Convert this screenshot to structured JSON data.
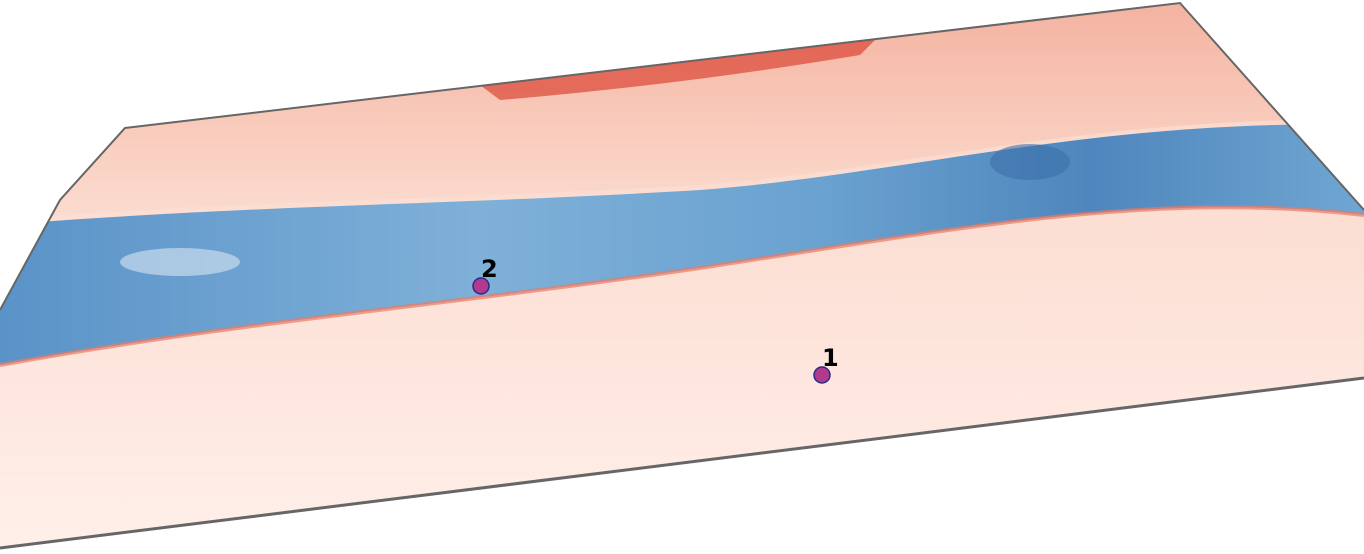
{
  "markers": [
    {
      "label": "1"
    },
    {
      "label": "2"
    }
  ]
}
